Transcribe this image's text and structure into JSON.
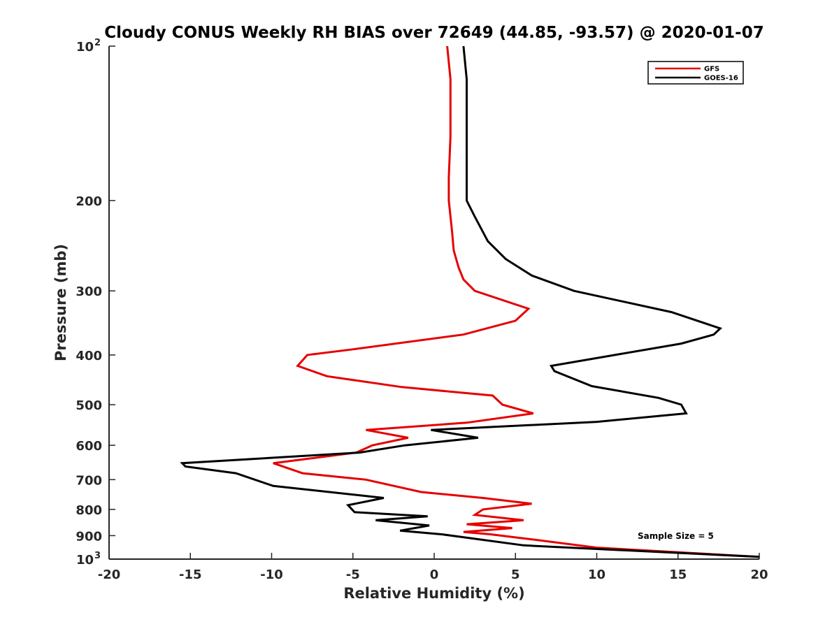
{
  "chart_data": {
    "type": "line",
    "title": "Cloudy CONUS Weekly RH BIAS over 72649 (44.85, -93.57) @ 2020-01-07",
    "xlabel": "Relative Humidity (%)",
    "ylabel": "Pressure (mb)",
    "xlim": [
      -20,
      20
    ],
    "ylim": [
      1000,
      100
    ],
    "y_scale": "log",
    "y_reversed": true,
    "grid": false,
    "legend_position": "top-right",
    "x_ticks": [
      "-20",
      "-15",
      "-10",
      "-5",
      "0",
      "5",
      "10",
      "15",
      "20"
    ],
    "y_ticks": [
      {
        "value": 100,
        "label": "10",
        "sup": "2"
      },
      {
        "value": 200,
        "label": "200",
        "sup": ""
      },
      {
        "value": 300,
        "label": "300",
        "sup": ""
      },
      {
        "value": 400,
        "label": "400",
        "sup": ""
      },
      {
        "value": 500,
        "label": "500",
        "sup": ""
      },
      {
        "value": 600,
        "label": "600",
        "sup": ""
      },
      {
        "value": 700,
        "label": "700",
        "sup": ""
      },
      {
        "value": 800,
        "label": "800",
        "sup": ""
      },
      {
        "value": 900,
        "label": "900",
        "sup": ""
      },
      {
        "value": 1000,
        "label": "10",
        "sup": "3"
      }
    ],
    "series": [
      {
        "name": "GFS",
        "color": "#e60000",
        "points": [
          {
            "rh": 0.8,
            "p": 100
          },
          {
            "rh": 1.0,
            "p": 116
          },
          {
            "rh": 1.0,
            "p": 150
          },
          {
            "rh": 0.9,
            "p": 180
          },
          {
            "rh": 0.9,
            "p": 200
          },
          {
            "rh": 1.1,
            "p": 230
          },
          {
            "rh": 1.2,
            "p": 250
          },
          {
            "rh": 1.5,
            "p": 270
          },
          {
            "rh": 1.8,
            "p": 285
          },
          {
            "rh": 2.5,
            "p": 300
          },
          {
            "rh": 5.8,
            "p": 325
          },
          {
            "rh": 5.0,
            "p": 343
          },
          {
            "rh": 1.8,
            "p": 365
          },
          {
            "rh": -5.0,
            "p": 390
          },
          {
            "rh": -7.8,
            "p": 400
          },
          {
            "rh": -8.4,
            "p": 420
          },
          {
            "rh": -6.6,
            "p": 440
          },
          {
            "rh": -2.0,
            "p": 462
          },
          {
            "rh": 3.6,
            "p": 480
          },
          {
            "rh": 4.2,
            "p": 500
          },
          {
            "rh": 6.1,
            "p": 520
          },
          {
            "rh": 2.0,
            "p": 542
          },
          {
            "rh": -4.2,
            "p": 560
          },
          {
            "rh": -1.6,
            "p": 580
          },
          {
            "rh": -3.8,
            "p": 600
          },
          {
            "rh": -4.8,
            "p": 620
          },
          {
            "rh": -9.9,
            "p": 650
          },
          {
            "rh": -8.1,
            "p": 680
          },
          {
            "rh": -4.2,
            "p": 700
          },
          {
            "rh": -0.8,
            "p": 740
          },
          {
            "rh": 3.0,
            "p": 760
          },
          {
            "rh": 6.0,
            "p": 780
          },
          {
            "rh": 3.0,
            "p": 800
          },
          {
            "rh": 2.5,
            "p": 820
          },
          {
            "rh": 5.5,
            "p": 840
          },
          {
            "rh": 2.0,
            "p": 855
          },
          {
            "rh": 4.8,
            "p": 870
          },
          {
            "rh": 1.8,
            "p": 885
          },
          {
            "rh": 3.5,
            "p": 895
          },
          {
            "rh": 6.0,
            "p": 915
          },
          {
            "rh": 10.0,
            "p": 950
          },
          {
            "rh": 20.0,
            "p": 990
          }
        ]
      },
      {
        "name": "GOES-16",
        "color": "#000000",
        "points": [
          {
            "rh": 1.8,
            "p": 100
          },
          {
            "rh": 2.0,
            "p": 116
          },
          {
            "rh": 2.0,
            "p": 150
          },
          {
            "rh": 2.0,
            "p": 200
          },
          {
            "rh": 2.5,
            "p": 215
          },
          {
            "rh": 3.3,
            "p": 240
          },
          {
            "rh": 4.4,
            "p": 260
          },
          {
            "rh": 6.0,
            "p": 280
          },
          {
            "rh": 8.6,
            "p": 300
          },
          {
            "rh": 14.6,
            "p": 330
          },
          {
            "rh": 17.6,
            "p": 355
          },
          {
            "rh": 17.2,
            "p": 365
          },
          {
            "rh": 15.2,
            "p": 380
          },
          {
            "rh": 7.2,
            "p": 420
          },
          {
            "rh": 7.4,
            "p": 430
          },
          {
            "rh": 9.7,
            "p": 460
          },
          {
            "rh": 13.8,
            "p": 485
          },
          {
            "rh": 15.2,
            "p": 500
          },
          {
            "rh": 15.5,
            "p": 520
          },
          {
            "rh": 10.0,
            "p": 540
          },
          {
            "rh": -0.2,
            "p": 560
          },
          {
            "rh": 2.7,
            "p": 580
          },
          {
            "rh": -1.8,
            "p": 600
          },
          {
            "rh": -4.6,
            "p": 620
          },
          {
            "rh": -15.5,
            "p": 650
          },
          {
            "rh": -15.3,
            "p": 660
          },
          {
            "rh": -12.2,
            "p": 680
          },
          {
            "rh": -9.9,
            "p": 720
          },
          {
            "rh": -3.1,
            "p": 760
          },
          {
            "rh": -5.3,
            "p": 785
          },
          {
            "rh": -4.9,
            "p": 810
          },
          {
            "rh": -0.4,
            "p": 825
          },
          {
            "rh": -3.6,
            "p": 840
          },
          {
            "rh": -0.3,
            "p": 860
          },
          {
            "rh": -2.1,
            "p": 880
          },
          {
            "rh": 0.5,
            "p": 895
          },
          {
            "rh": 5.5,
            "p": 940
          },
          {
            "rh": 20.0,
            "p": 990
          }
        ]
      }
    ],
    "annotation": "Sample Size = 5"
  }
}
